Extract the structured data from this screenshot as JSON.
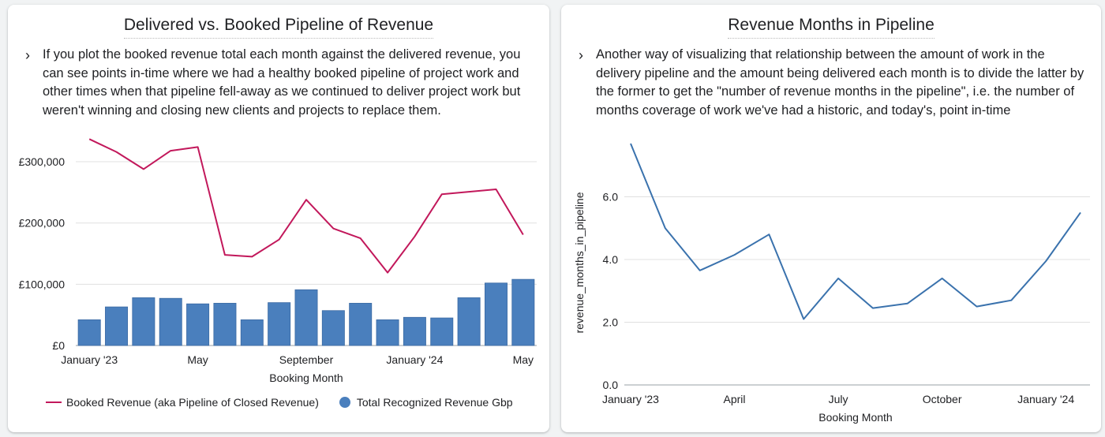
{
  "left_card": {
    "title": "Delivered vs. Booked Pipeline of Revenue",
    "description": "If you plot the booked revenue total each month against the delivered revenue, you can see points in-time where we had a healthy booked pipeline of project work and other times when that pipeline fell-away as we continued to deliver project work but weren't winning and closing new clients and projects to replace them."
  },
  "right_card": {
    "title": "Revenue Months in Pipeline",
    "description": "Another way of visualizing that relationship between the amount of work in the delivery pipeline and the amount being delivered each month is to divide the latter by the former to get the \"number of revenue months in the pipeline\", i.e. the number of months coverage of work we've had a historic, and today's, point in-time"
  },
  "icons": {
    "expand": "chevron-right-icon"
  },
  "chart_data": [
    {
      "type": "bar+line",
      "title": "Delivered vs. Booked Pipeline of Revenue",
      "xlabel": "Booking Month",
      "ylabel": "",
      "ylim": [
        0,
        340000
      ],
      "yticks": [
        0,
        100000,
        200000,
        300000
      ],
      "ytick_labels": [
        "£0",
        "£100,000",
        "£200,000",
        "£300,000"
      ],
      "categories": [
        "2023-01",
        "2023-02",
        "2023-03",
        "2023-04",
        "2023-05",
        "2023-06",
        "2023-07",
        "2023-08",
        "2023-09",
        "2023-10",
        "2023-11",
        "2023-12",
        "2024-01",
        "2024-02",
        "2024-03",
        "2024-04",
        "2024-05"
      ],
      "xtick_labels": [
        {
          "index": 0,
          "label": "January '23"
        },
        {
          "index": 4,
          "label": "May"
        },
        {
          "index": 8,
          "label": "September"
        },
        {
          "index": 12,
          "label": "January '24"
        },
        {
          "index": 16,
          "label": "May"
        }
      ],
      "grid": true,
      "legend_position": "bottom-left",
      "series": [
        {
          "name": "Booked Revenue (aka Pipeline of Closed Revenue)",
          "kind": "line",
          "color": "#c2185b",
          "values": [
            337000,
            316000,
            288000,
            318000,
            324000,
            148000,
            145000,
            173000,
            238000,
            191000,
            175000,
            119000,
            178000,
            247000,
            251000,
            255000,
            181000
          ]
        },
        {
          "name": "Total Recognized Revenue Gbp",
          "kind": "bar",
          "color": "#4a7fbd",
          "values": [
            42000,
            63000,
            78000,
            77000,
            68000,
            69000,
            42000,
            70000,
            91000,
            57000,
            69000,
            42000,
            46000,
            45000,
            78000,
            102000,
            108000
          ]
        }
      ]
    },
    {
      "type": "line",
      "title": "Revenue Months in Pipeline",
      "xlabel": "Booking Month",
      "ylabel": "revenue_months_in_pipeline",
      "ylim": [
        0,
        7.8
      ],
      "yticks": [
        0,
        2,
        4,
        6
      ],
      "ytick_labels": [
        "0.0",
        "2.0",
        "4.0",
        "6.0"
      ],
      "categories": [
        "2023-01",
        "2023-02",
        "2023-03",
        "2023-04",
        "2023-05",
        "2023-06",
        "2023-07",
        "2023-08",
        "2023-09",
        "2023-10",
        "2023-11",
        "2023-12",
        "2024-01",
        "2024-02"
      ],
      "xtick_labels": [
        {
          "index": 0,
          "label": "January '23"
        },
        {
          "index": 3,
          "label": "April"
        },
        {
          "index": 6,
          "label": "July"
        },
        {
          "index": 9,
          "label": "October"
        },
        {
          "index": 12,
          "label": "January '24"
        }
      ],
      "grid": true,
      "series": [
        {
          "name": "",
          "kind": "line",
          "color": "#3a72ad",
          "values": [
            7.7,
            5.0,
            3.65,
            4.15,
            4.8,
            2.1,
            3.4,
            2.45,
            2.6,
            3.4,
            2.5,
            2.7,
            3.95,
            5.5
          ]
        }
      ]
    }
  ]
}
